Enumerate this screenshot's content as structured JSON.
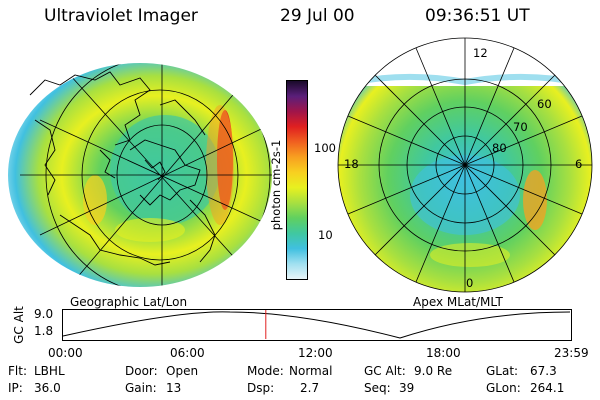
{
  "header": {
    "title": "Ultraviolet Imager",
    "date": "29 Jul 00",
    "time": "09:36:51 UT"
  },
  "left_map": {
    "label": "Geographic Lat/Lon"
  },
  "right_map": {
    "label": "Apex MLat/MLT",
    "mlt_labels": [
      "12",
      "18",
      "6",
      "0"
    ],
    "lat_labels": [
      "60",
      "70",
      "80"
    ]
  },
  "colorbar": {
    "unit_label": "photon cm-2s-1",
    "ticks": [
      "100",
      "10"
    ],
    "colors": [
      "#1a0a2a",
      "#5a1f7a",
      "#a0154a",
      "#e02020",
      "#f06020",
      "#f8a020",
      "#f8d020",
      "#e8f020",
      "#a8e040",
      "#60d060",
      "#40c8a0",
      "#40c0e0",
      "#a0e0f0",
      "#e8f4f8"
    ]
  },
  "timeline": {
    "y_axis_label": "GC Alt",
    "y_ticks": [
      "9.0",
      "1.8"
    ],
    "x_ticks": [
      "00:00",
      "06:00",
      "12:00",
      "18:00",
      "23:59"
    ],
    "marker_time": "09:36",
    "marker_color": "#e02020"
  },
  "info": {
    "filter_label": "Flt:",
    "filter_value": "LBHL",
    "ip_label": "IP:",
    "ip_value": "36.0",
    "door_label": "Door:",
    "door_value": "Open",
    "gain_label": "Gain:",
    "gain_value": "13",
    "mode_label": "Mode:",
    "mode_value": "Normal",
    "dsp_label": "Dsp:",
    "dsp_value": "2.7",
    "gcalt_label": "GC Alt:",
    "gcalt_value": "9.0 Re",
    "seq_label": "Seq:",
    "seq_value": "39",
    "glat_label": "GLat:",
    "glat_value": "67.3",
    "glon_label": "GLon:",
    "glon_value": "264.1"
  }
}
